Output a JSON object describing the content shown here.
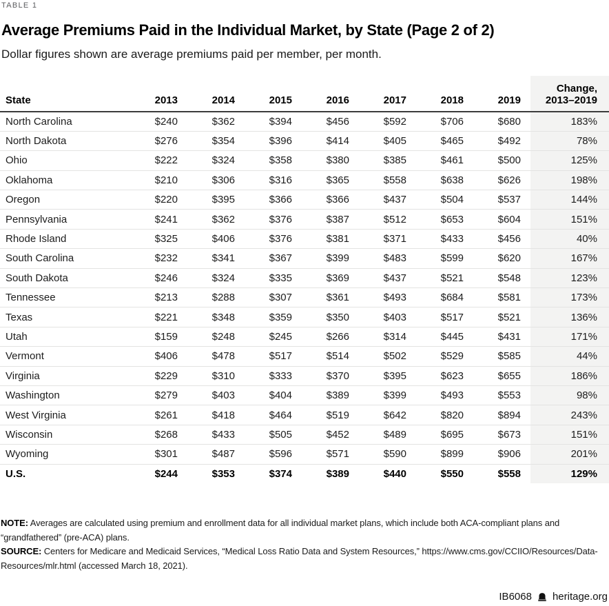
{
  "page": {
    "table_label": "TABLE 1",
    "title": "Average Premiums Paid in the Individual Market, by State (Page 2 of 2)",
    "subtitle": "Dollar figures shown are average premiums paid per member, per month."
  },
  "table": {
    "state_header": "State",
    "year_headers": [
      "2013",
      "2014",
      "2015",
      "2016",
      "2017",
      "2018",
      "2019"
    ],
    "change_header_line1": "Change,",
    "change_header_line2": "2013–2019",
    "rows": [
      {
        "state": "North Carolina",
        "values": [
          "$240",
          "$362",
          "$394",
          "$456",
          "$592",
          "$706",
          "$680"
        ],
        "change": "183%"
      },
      {
        "state": "North Dakota",
        "values": [
          "$276",
          "$354",
          "$396",
          "$414",
          "$405",
          "$465",
          "$492"
        ],
        "change": "78%"
      },
      {
        "state": "Ohio",
        "values": [
          "$222",
          "$324",
          "$358",
          "$380",
          "$385",
          "$461",
          "$500"
        ],
        "change": "125%"
      },
      {
        "state": "Oklahoma",
        "values": [
          "$210",
          "$306",
          "$316",
          "$365",
          "$558",
          "$638",
          "$626"
        ],
        "change": "198%"
      },
      {
        "state": "Oregon",
        "values": [
          "$220",
          "$395",
          "$366",
          "$366",
          "$437",
          "$504",
          "$537"
        ],
        "change": "144%"
      },
      {
        "state": "Pennsylvania",
        "values": [
          "$241",
          "$362",
          "$376",
          "$387",
          "$512",
          "$653",
          "$604"
        ],
        "change": "151%"
      },
      {
        "state": "Rhode Island",
        "values": [
          "$325",
          "$406",
          "$376",
          "$381",
          "$371",
          "$433",
          "$456"
        ],
        "change": "40%"
      },
      {
        "state": "South Carolina",
        "values": [
          "$232",
          "$341",
          "$367",
          "$399",
          "$483",
          "$599",
          "$620"
        ],
        "change": "167%"
      },
      {
        "state": "South Dakota",
        "values": [
          "$246",
          "$324",
          "$335",
          "$369",
          "$437",
          "$521",
          "$548"
        ],
        "change": "123%"
      },
      {
        "state": "Tennessee",
        "values": [
          "$213",
          "$288",
          "$307",
          "$361",
          "$493",
          "$684",
          "$581"
        ],
        "change": "173%"
      },
      {
        "state": "Texas",
        "values": [
          "$221",
          "$348",
          "$359",
          "$350",
          "$403",
          "$517",
          "$521"
        ],
        "change": "136%"
      },
      {
        "state": "Utah",
        "values": [
          "$159",
          "$248",
          "$245",
          "$266",
          "$314",
          "$445",
          "$431"
        ],
        "change": "171%"
      },
      {
        "state": "Vermont",
        "values": [
          "$406",
          "$478",
          "$517",
          "$514",
          "$502",
          "$529",
          "$585"
        ],
        "change": "44%"
      },
      {
        "state": "Virginia",
        "values": [
          "$229",
          "$310",
          "$333",
          "$370",
          "$395",
          "$623",
          "$655"
        ],
        "change": "186%"
      },
      {
        "state": "Washington",
        "values": [
          "$279",
          "$403",
          "$404",
          "$389",
          "$399",
          "$493",
          "$553"
        ],
        "change": "98%"
      },
      {
        "state": "West Virginia",
        "values": [
          "$261",
          "$418",
          "$464",
          "$519",
          "$642",
          "$820",
          "$894"
        ],
        "change": "243%"
      },
      {
        "state": "Wisconsin",
        "values": [
          "$268",
          "$433",
          "$505",
          "$452",
          "$489",
          "$695",
          "$673"
        ],
        "change": "151%"
      },
      {
        "state": "Wyoming",
        "values": [
          "$301",
          "$487",
          "$596",
          "$571",
          "$590",
          "$899",
          "$906"
        ],
        "change": "201%"
      }
    ],
    "total": {
      "state": "U.S.",
      "values": [
        "$244",
        "$353",
        "$374",
        "$389",
        "$440",
        "$550",
        "$558"
      ],
      "change": "129%"
    }
  },
  "notes": {
    "note_label": "NOTE:",
    "note_text": "Averages are calculated using premium and enrollment data for all individual market plans, which include both ACA-compliant plans and “grandfathered” (pre-ACA) plans.",
    "source_label": "SOURCE:",
    "source_text": "Centers for Medicare and Medicaid Services, “Medical Loss Ratio Data and System Resources,” https://www.cms.gov/CCIIO/Resources/Data-Resources/mlr.html (accessed March 18, 2021)."
  },
  "footer": {
    "doc_id": "IB6068",
    "site": "heritage.org"
  },
  "colors": {
    "change_column_bg": "#f3f3f2",
    "header_rule": "#3b3b3b",
    "row_rule": "#e3e3e2",
    "label_gray": "#5a5b5e"
  }
}
